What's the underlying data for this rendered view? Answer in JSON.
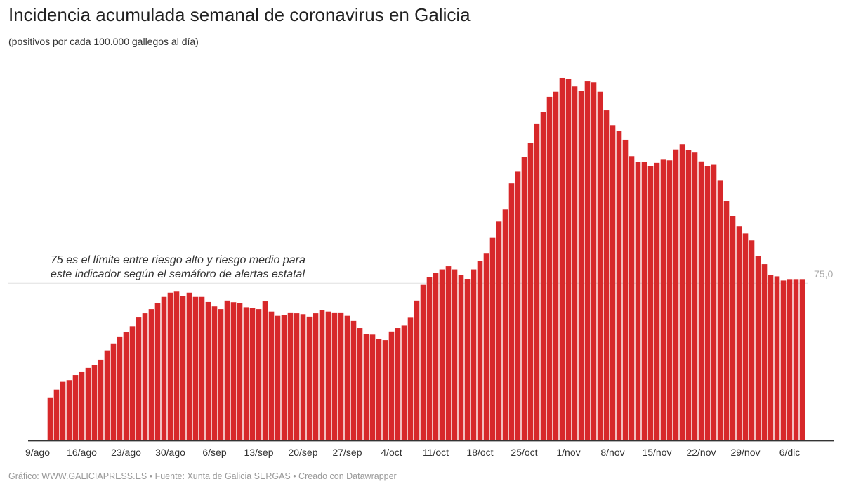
{
  "title": "Incidencia acumulada semanal de coronavirus en Galicia",
  "subtitle": "(positivos por cada 100.000 gallegos al día)",
  "annotation": {
    "line1": "75 es el límite entre riesgo alto y riesgo medio para",
    "line2": "este indicador según el semáforo de alertas estatal"
  },
  "footer": "Gráfico: WWW.GALICIAPRESS.ES • Fuente: Xunta de Galicia SERGAS • Creado con Datawrapper",
  "colors": {
    "bar": "#d7282a",
    "reference_line": "#e0e0e0",
    "axis": "#333333"
  },
  "chart_data": {
    "type": "bar",
    "title": "Incidencia acumulada semanal de coronavirus en Galicia",
    "subtitle": "(positivos por cada 100.000 gallegos al día)",
    "xlabel": "",
    "ylabel": "",
    "ylim": [
      0,
      180
    ],
    "grid": false,
    "reference_line": {
      "value": 75,
      "label": "75,0"
    },
    "x_ticks": [
      "9/ago",
      "16/ago",
      "23/ago",
      "30/ago",
      "6/sep",
      "13/sep",
      "20/sep",
      "27/sep",
      "4/oct",
      "11/oct",
      "18/oct",
      "25/oct",
      "1/nov",
      "8/nov",
      "15/nov",
      "22/nov",
      "29/nov",
      "6/dic"
    ],
    "categories": [
      "11/ago",
      "12/ago",
      "13/ago",
      "14/ago",
      "15/ago",
      "16/ago",
      "17/ago",
      "18/ago",
      "19/ago",
      "20/ago",
      "21/ago",
      "22/ago",
      "23/ago",
      "24/ago",
      "25/ago",
      "26/ago",
      "27/ago",
      "28/ago",
      "29/ago",
      "30/ago",
      "31/ago",
      "1/sep",
      "2/sep",
      "3/sep",
      "4/sep",
      "5/sep",
      "6/sep",
      "7/sep",
      "8/sep",
      "9/sep",
      "10/sep",
      "11/sep",
      "12/sep",
      "13/sep",
      "14/sep",
      "15/sep",
      "16/sep",
      "17/sep",
      "18/sep",
      "19/sep",
      "20/sep",
      "21/sep",
      "22/sep",
      "23/sep",
      "24/sep",
      "25/sep",
      "26/sep",
      "27/sep",
      "28/sep",
      "29/sep",
      "30/sep",
      "1/oct",
      "2/oct",
      "3/oct",
      "4/oct",
      "5/oct",
      "6/oct",
      "7/oct",
      "8/oct",
      "9/oct",
      "10/oct",
      "11/oct",
      "12/oct",
      "13/oct",
      "14/oct",
      "15/oct",
      "16/oct",
      "17/oct",
      "18/oct",
      "19/oct",
      "20/oct",
      "21/oct",
      "22/oct",
      "23/oct",
      "24/oct",
      "25/oct",
      "26/oct",
      "27/oct",
      "28/oct",
      "29/oct",
      "30/oct",
      "31/oct",
      "1/nov",
      "2/nov",
      "3/nov",
      "4/nov",
      "5/nov",
      "6/nov",
      "7/nov",
      "8/nov",
      "9/nov",
      "10/nov",
      "11/nov",
      "12/nov",
      "13/nov",
      "14/nov",
      "15/nov",
      "16/nov",
      "17/nov",
      "18/nov",
      "19/nov",
      "20/nov",
      "21/nov",
      "22/nov",
      "23/nov",
      "24/nov",
      "25/nov",
      "26/nov",
      "27/nov",
      "28/nov",
      "29/nov",
      "30/nov",
      "1/dic",
      "2/dic",
      "3/dic",
      "4/dic",
      "5/dic",
      "6/dic",
      "7/dic",
      "8/dic"
    ],
    "values": [
      20.7,
      24.4,
      28.1,
      28.9,
      31.3,
      33.0,
      34.7,
      36.2,
      38.7,
      42.8,
      46.1,
      49.4,
      51.7,
      54.6,
      58.7,
      60.7,
      62.7,
      65.6,
      68.5,
      70.5,
      71.0,
      68.9,
      70.5,
      68.5,
      68.5,
      66.1,
      64.0,
      62.7,
      66.8,
      66.0,
      65.6,
      63.6,
      63.2,
      62.7,
      66.4,
      61.5,
      59.5,
      59.9,
      61.1,
      60.7,
      60.3,
      59.1,
      60.7,
      62.4,
      61.5,
      61.1,
      61.1,
      59.5,
      57.1,
      53.7,
      50.9,
      50.6,
      48.5,
      48.0,
      52.1,
      53.7,
      54.9,
      58.6,
      66.8,
      74.2,
      77.9,
      79.9,
      81.6,
      83.1,
      81.6,
      79.1,
      77.1,
      81.6,
      85.6,
      89.4,
      96.6,
      104.4,
      110.1,
      122.5,
      128.1,
      135.0,
      141.9,
      151.0,
      156.6,
      163.7,
      166.1,
      172.7,
      172.3,
      168.6,
      166.6,
      171.0,
      170.6,
      166.1,
      157.3,
      150.2,
      147.3,
      143.3,
      135.5,
      132.6,
      132.6,
      130.6,
      132.3,
      133.8,
      133.5,
      138.7,
      141.2,
      138.3,
      137.2,
      133.0,
      130.6,
      131.4,
      124.1,
      114.2,
      106.9,
      102.1,
      98.7,
      95.4,
      88.0,
      84.1,
      79.1,
      78.3,
      76.3,
      77.0,
      77.0,
      77.0
    ]
  }
}
